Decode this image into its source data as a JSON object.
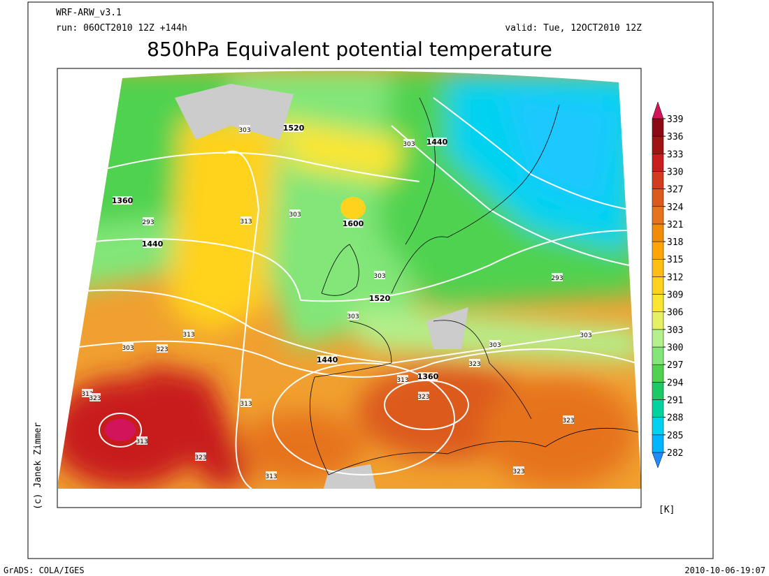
{
  "header": {
    "model": "WRF-ARW_v3.1",
    "run": "run: 06OCT2010 12Z +144h",
    "valid": "valid: Tue, 12OCT2010 12Z",
    "title": "850hPa Equivalent potential temperature"
  },
  "colorbar": {
    "labels": [
      282,
      285,
      288,
      291,
      294,
      297,
      300,
      303,
      306,
      309,
      312,
      315,
      318,
      321,
      324,
      327,
      330,
      333,
      336,
      339
    ],
    "colors": [
      "#1e8cff",
      "#00b4ff",
      "#00d2f0",
      "#00d2a0",
      "#1ec864",
      "#50d250",
      "#82e678",
      "#b4f08c",
      "#e6f064",
      "#fae632",
      "#ffd21e",
      "#ffbe14",
      "#ffa50a",
      "#f08c0a",
      "#e6731e",
      "#dc5a1e",
      "#d23c1e",
      "#c81e1e",
      "#a01414",
      "#8c0a14",
      "#d2145a"
    ],
    "unit": "[K]"
  },
  "contour_labels": [
    "303",
    "1520",
    "1440",
    "303",
    "1360",
    "293",
    "313",
    "303",
    "1600",
    "1440",
    "303",
    "293",
    "1520",
    "303",
    "313",
    "303",
    "323",
    "1440",
    "303",
    "303",
    "323",
    "313",
    "1360",
    "313",
    "323",
    "323",
    "313",
    "313",
    "323",
    "323",
    "323",
    "313"
  ],
  "copyright": "(c) Janek Zimmer",
  "footer": {
    "left": "GrADS: COLA/IGES",
    "right": "2010-10-06-19:07"
  }
}
